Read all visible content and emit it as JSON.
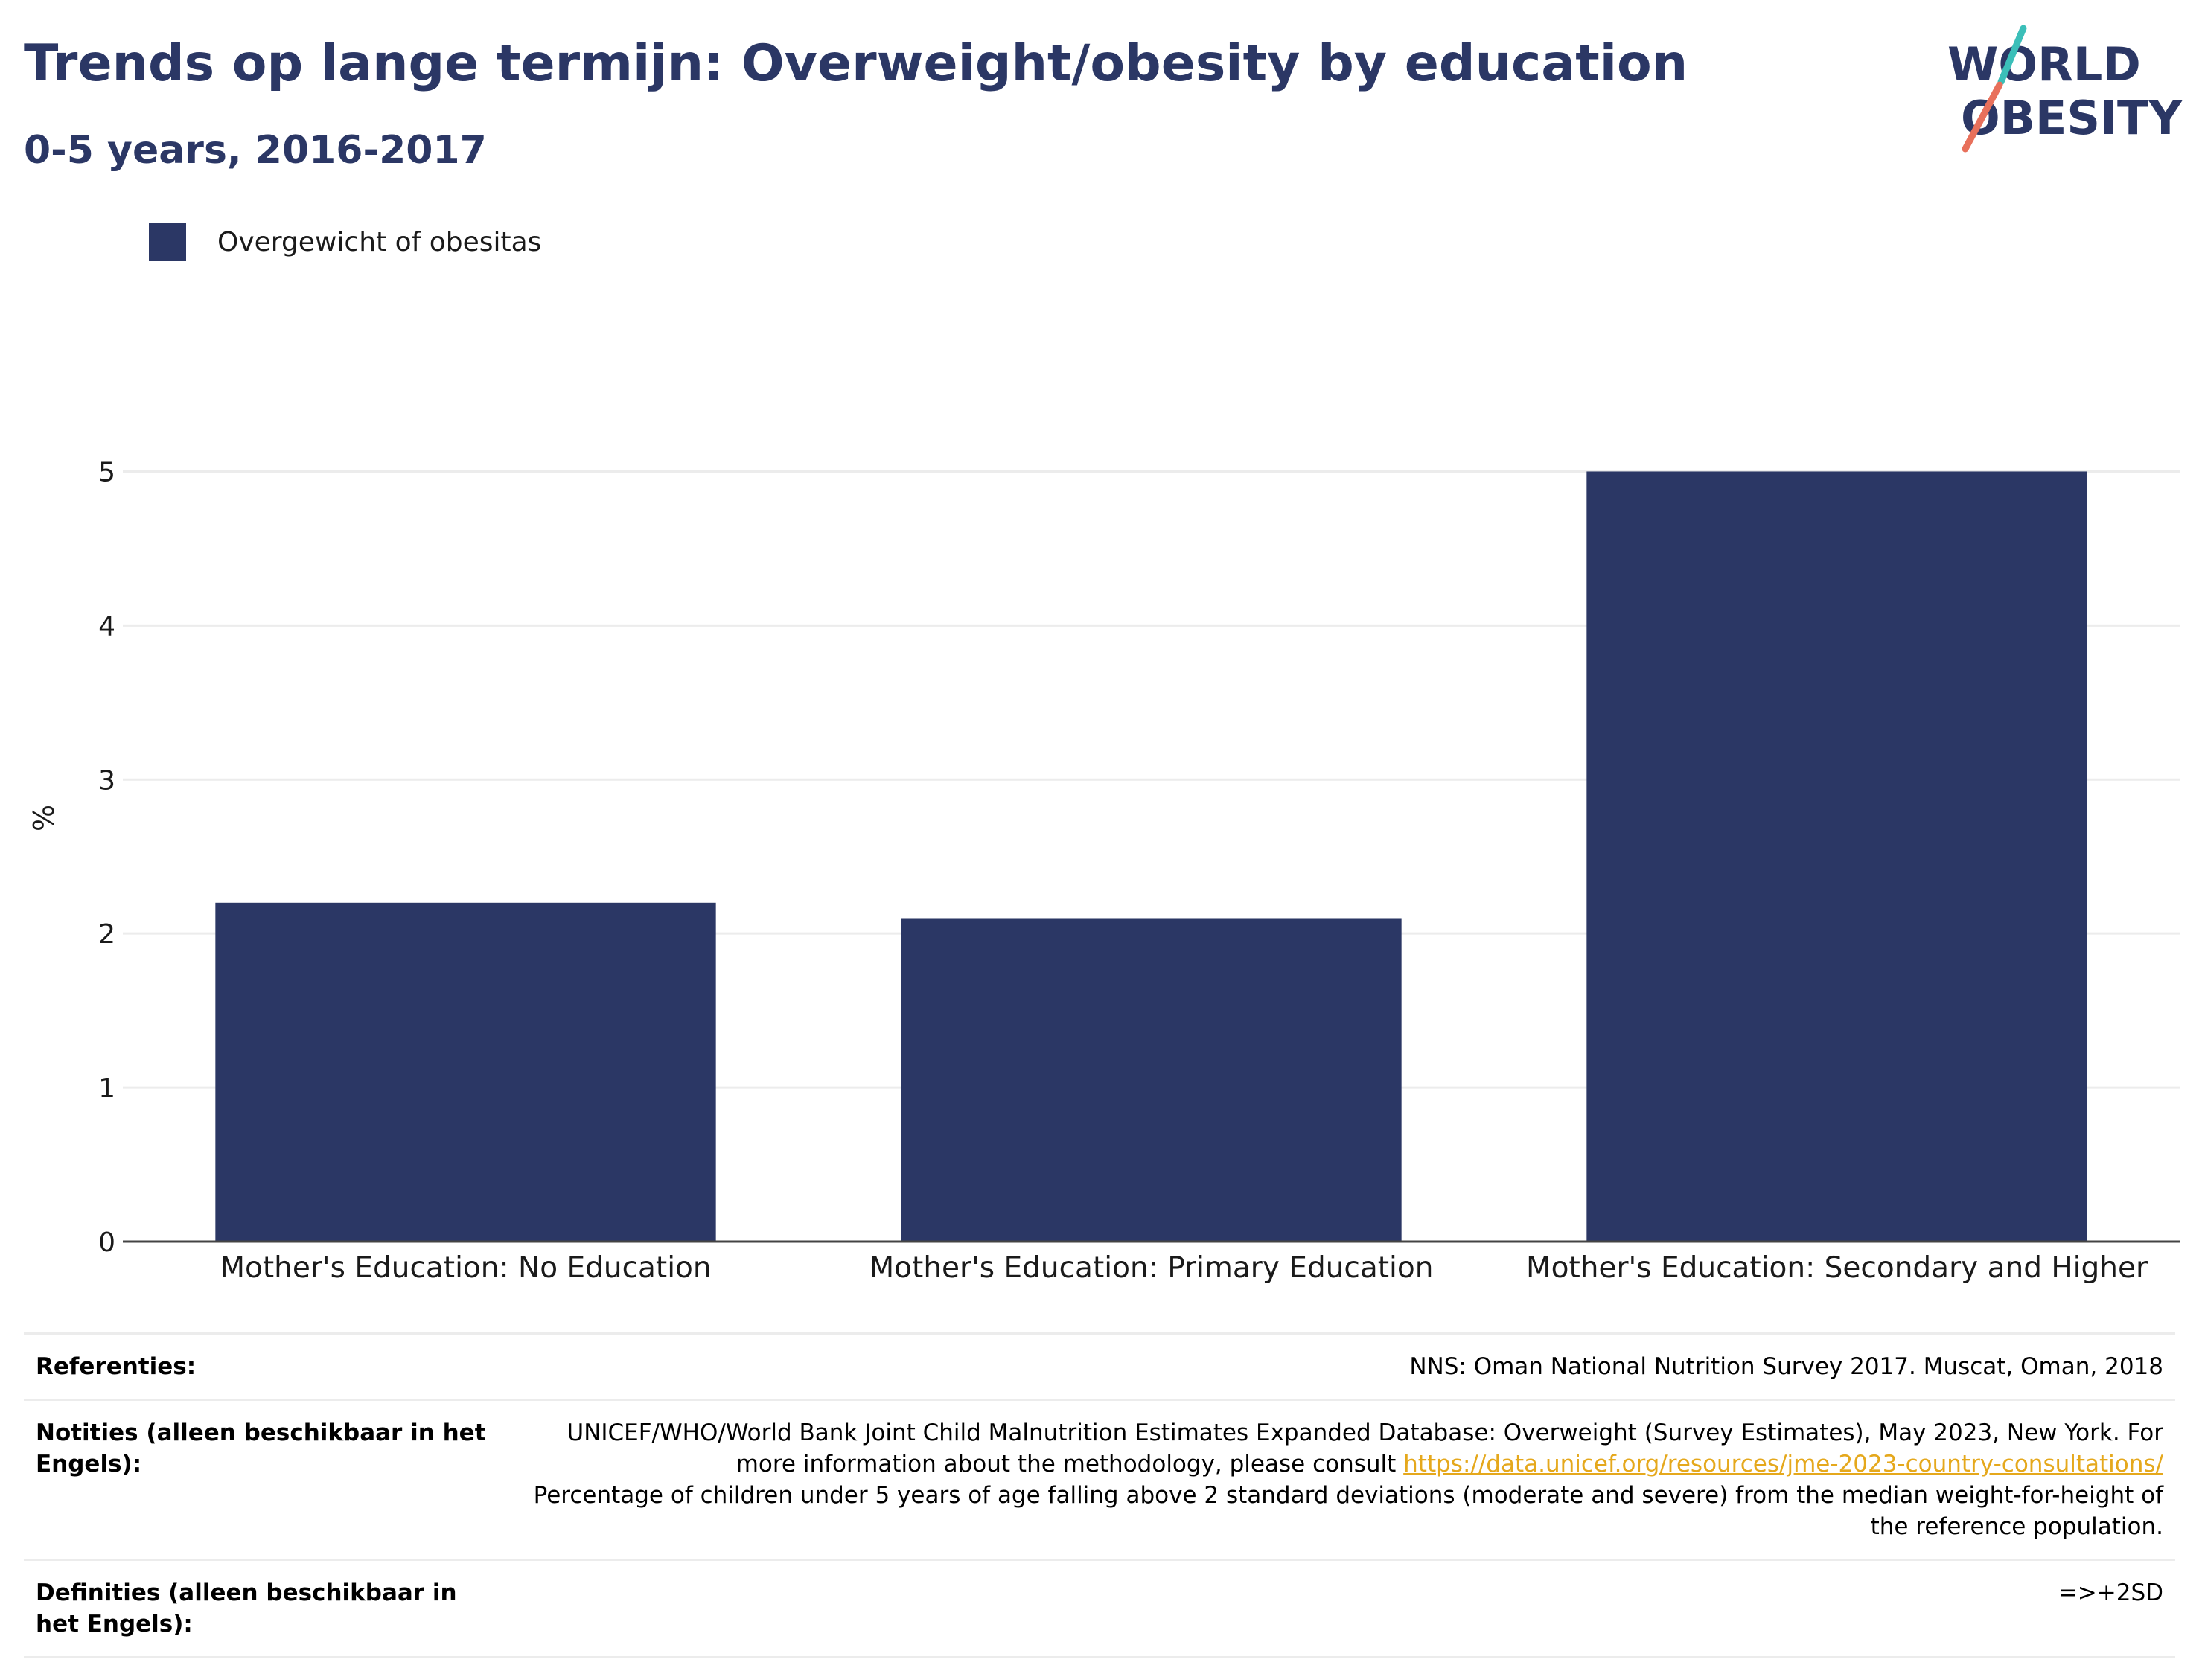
{
  "header": {
    "title": "Trends op lange termijn: Overweight/obesity by education",
    "subtitle": "0-5 years, 2016-2017"
  },
  "logo": {
    "line1": "WORLD",
    "line2": "OBESITY",
    "accent_teal": "#3bbfb9",
    "accent_red": "#e8705b"
  },
  "chart_data": {
    "type": "bar",
    "categories": [
      "Mother's Education: No Education",
      "Mother's Education: Primary Education",
      "Mother's Education: Secondary and Higher"
    ],
    "series": [
      {
        "name": "Overgewicht of obesitas",
        "values": [
          2.2,
          2.1,
          5.0
        ],
        "color": "#2b3765"
      }
    ],
    "ylabel": "%",
    "ylim": [
      0,
      5.5
    ],
    "yticks": [
      0,
      1,
      2,
      3,
      4,
      5
    ],
    "grid": true,
    "legend": "top-left"
  },
  "notes": {
    "references_label": "Referenties:",
    "references_value": "NNS: Oman National Nutrition Survey 2017. Muscat, Oman, 2018",
    "notes_label": "Notities (alleen beschikbaar in het Engels):",
    "notes_text_1": "UNICEF/WHO/World Bank Joint Child Malnutrition Estimates Expanded Database: Overweight (Survey Estimates), May 2023, New York. For more information about the methodology, please consult ",
    "notes_link": "https://data.unicef.org/resources/jme-2023-country-consultations/",
    "notes_text_2": "Percentage of children under 5 years of age falling above 2 standard deviations (moderate and severe) from the median weight-for-height of the reference population.",
    "definitions_label": "Definities (alleen beschikbaar in het Engels):",
    "definitions_value": "=>+2SD"
  }
}
